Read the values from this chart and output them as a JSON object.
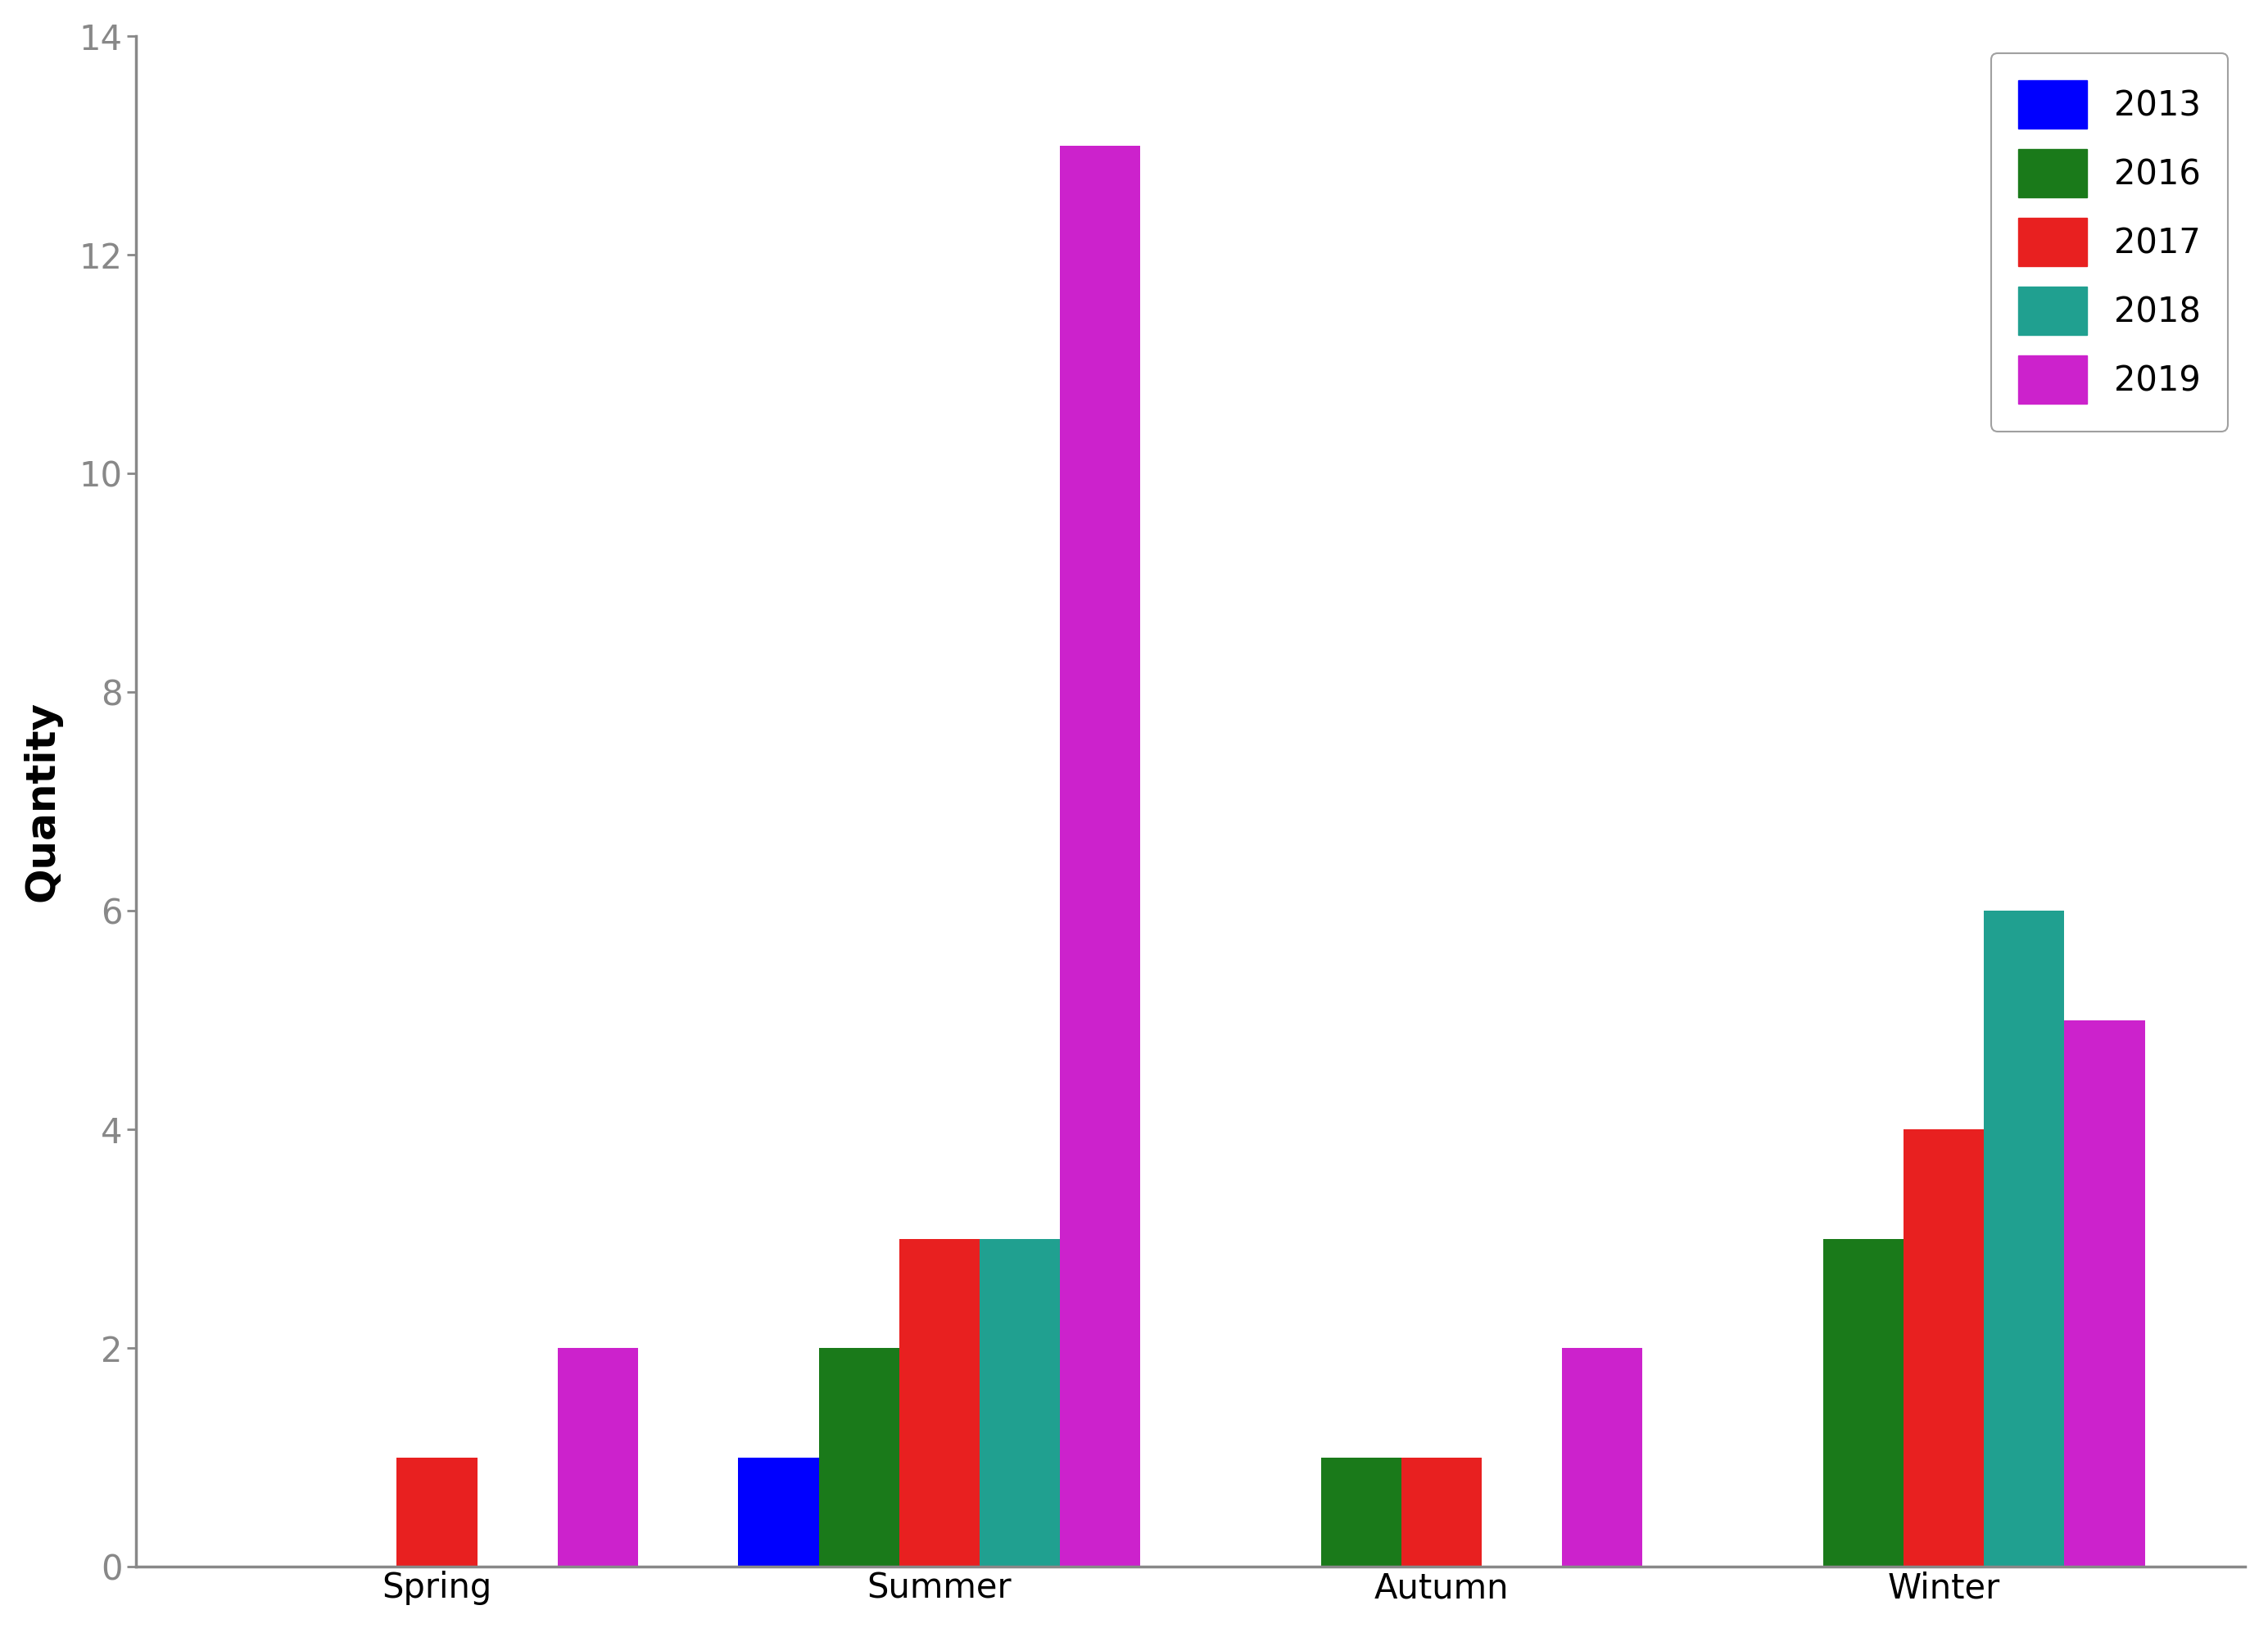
{
  "categories": [
    "Spring",
    "Summer",
    "Autumn",
    "Winter"
  ],
  "years": [
    "2013",
    "2016",
    "2017",
    "2018",
    "2019"
  ],
  "colors": [
    "#0000ff",
    "#1a7a1a",
    "#e82020",
    "#20a090",
    "#cc22cc"
  ],
  "values": {
    "2013": [
      0,
      1,
      0,
      0
    ],
    "2016": [
      0,
      2,
      1,
      3
    ],
    "2017": [
      1,
      3,
      1,
      4
    ],
    "2018": [
      0,
      3,
      0,
      6
    ],
    "2019": [
      2,
      13,
      2,
      5
    ]
  },
  "ylabel": "Quantity",
  "ylim": [
    0,
    14
  ],
  "yticks": [
    0,
    2,
    4,
    6,
    8,
    10,
    12,
    14
  ],
  "bar_width": 0.16,
  "legend_fontsize": 30,
  "axis_label_fontsize": 36,
  "tick_fontsize": 30,
  "background_color": "#ffffff",
  "legend_edgecolor": "#888888",
  "spine_color": "#888888",
  "spine_linewidth": 2.5
}
